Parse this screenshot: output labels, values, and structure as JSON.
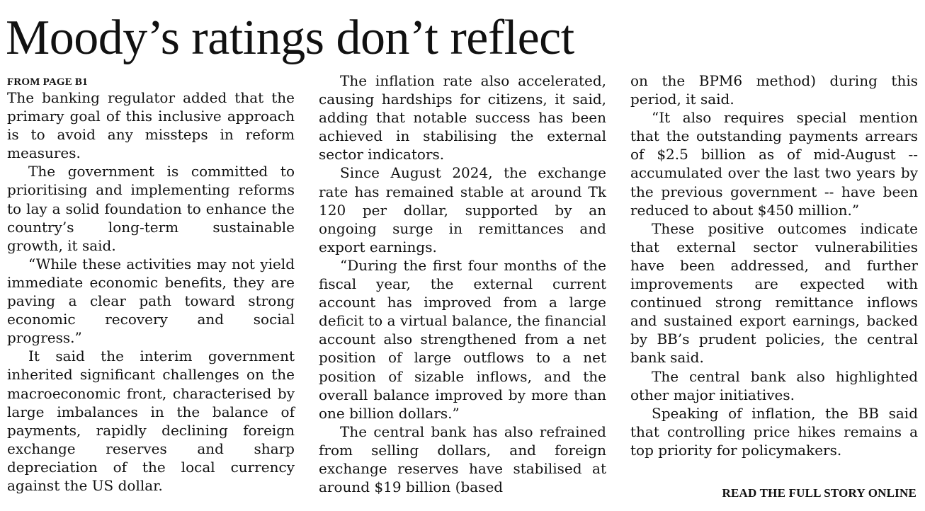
{
  "article": {
    "headline": "Moody’s ratings don’t reflect",
    "kicker": "FROM PAGE B1",
    "read_more": "READ THE FULL STORY ONLINE",
    "columns": [
      [
        "The banking regulator added that the primary goal of this inclusive approach is to avoid any missteps in reform measures.",
        "The government is committed to prioritising and implementing reforms to lay a solid foundation to enhance the country’s long-term sustainable growth, it said.",
        "“While these activities may not yield immediate economic benefits, they are paving a clear path toward strong economic recovery and social progress.”",
        "It said the interim government inherited significant challenges on the macroeconomic front, characterised by large imbalances in the balance of payments, rapidly declining foreign exchange reserves and sharp depreciation of the local currency against the US dollar."
      ],
      [
        "The inflation rate also accelerated, causing hardships for citizens, it said, adding that notable success has been achieved in stabilising the external sector indicators.",
        "Since August 2024, the exchange rate has remained stable at around Tk 120 per dollar, supported by an ongoing surge in remittances and export earnings.",
        "“During the first four months of the fiscal year, the external current account has improved from a large deficit to a virtual balance, the financial account also strengthened from a net position of large outflows to a net position of sizable inflows, and the overall balance improved by more than one billion dollars.”",
        "The central bank has also refrained from selling dollars, and foreign exchange reserves have stabilised at around $19 billion (based"
      ],
      [
        "on the BPM6 method) during this period, it said.",
        "“It also requires special mention that the outstanding payments arrears of $2.5 billion as of mid-August -- accumulated over the last two years by the previous government -- have been reduced to about $450 million.”",
        "These positive outcomes indicate that external sector vulnerabilities have been addressed, and further improvements are expected with continued strong remittance inflows and sustained export earnings, backed by BB’s prudent policies, the central bank said.",
        "The central bank also highlighted other major initiatives.",
        "Speaking of inflation, the BB said that controlling price hikes remains a top priority for policymakers."
      ]
    ]
  }
}
